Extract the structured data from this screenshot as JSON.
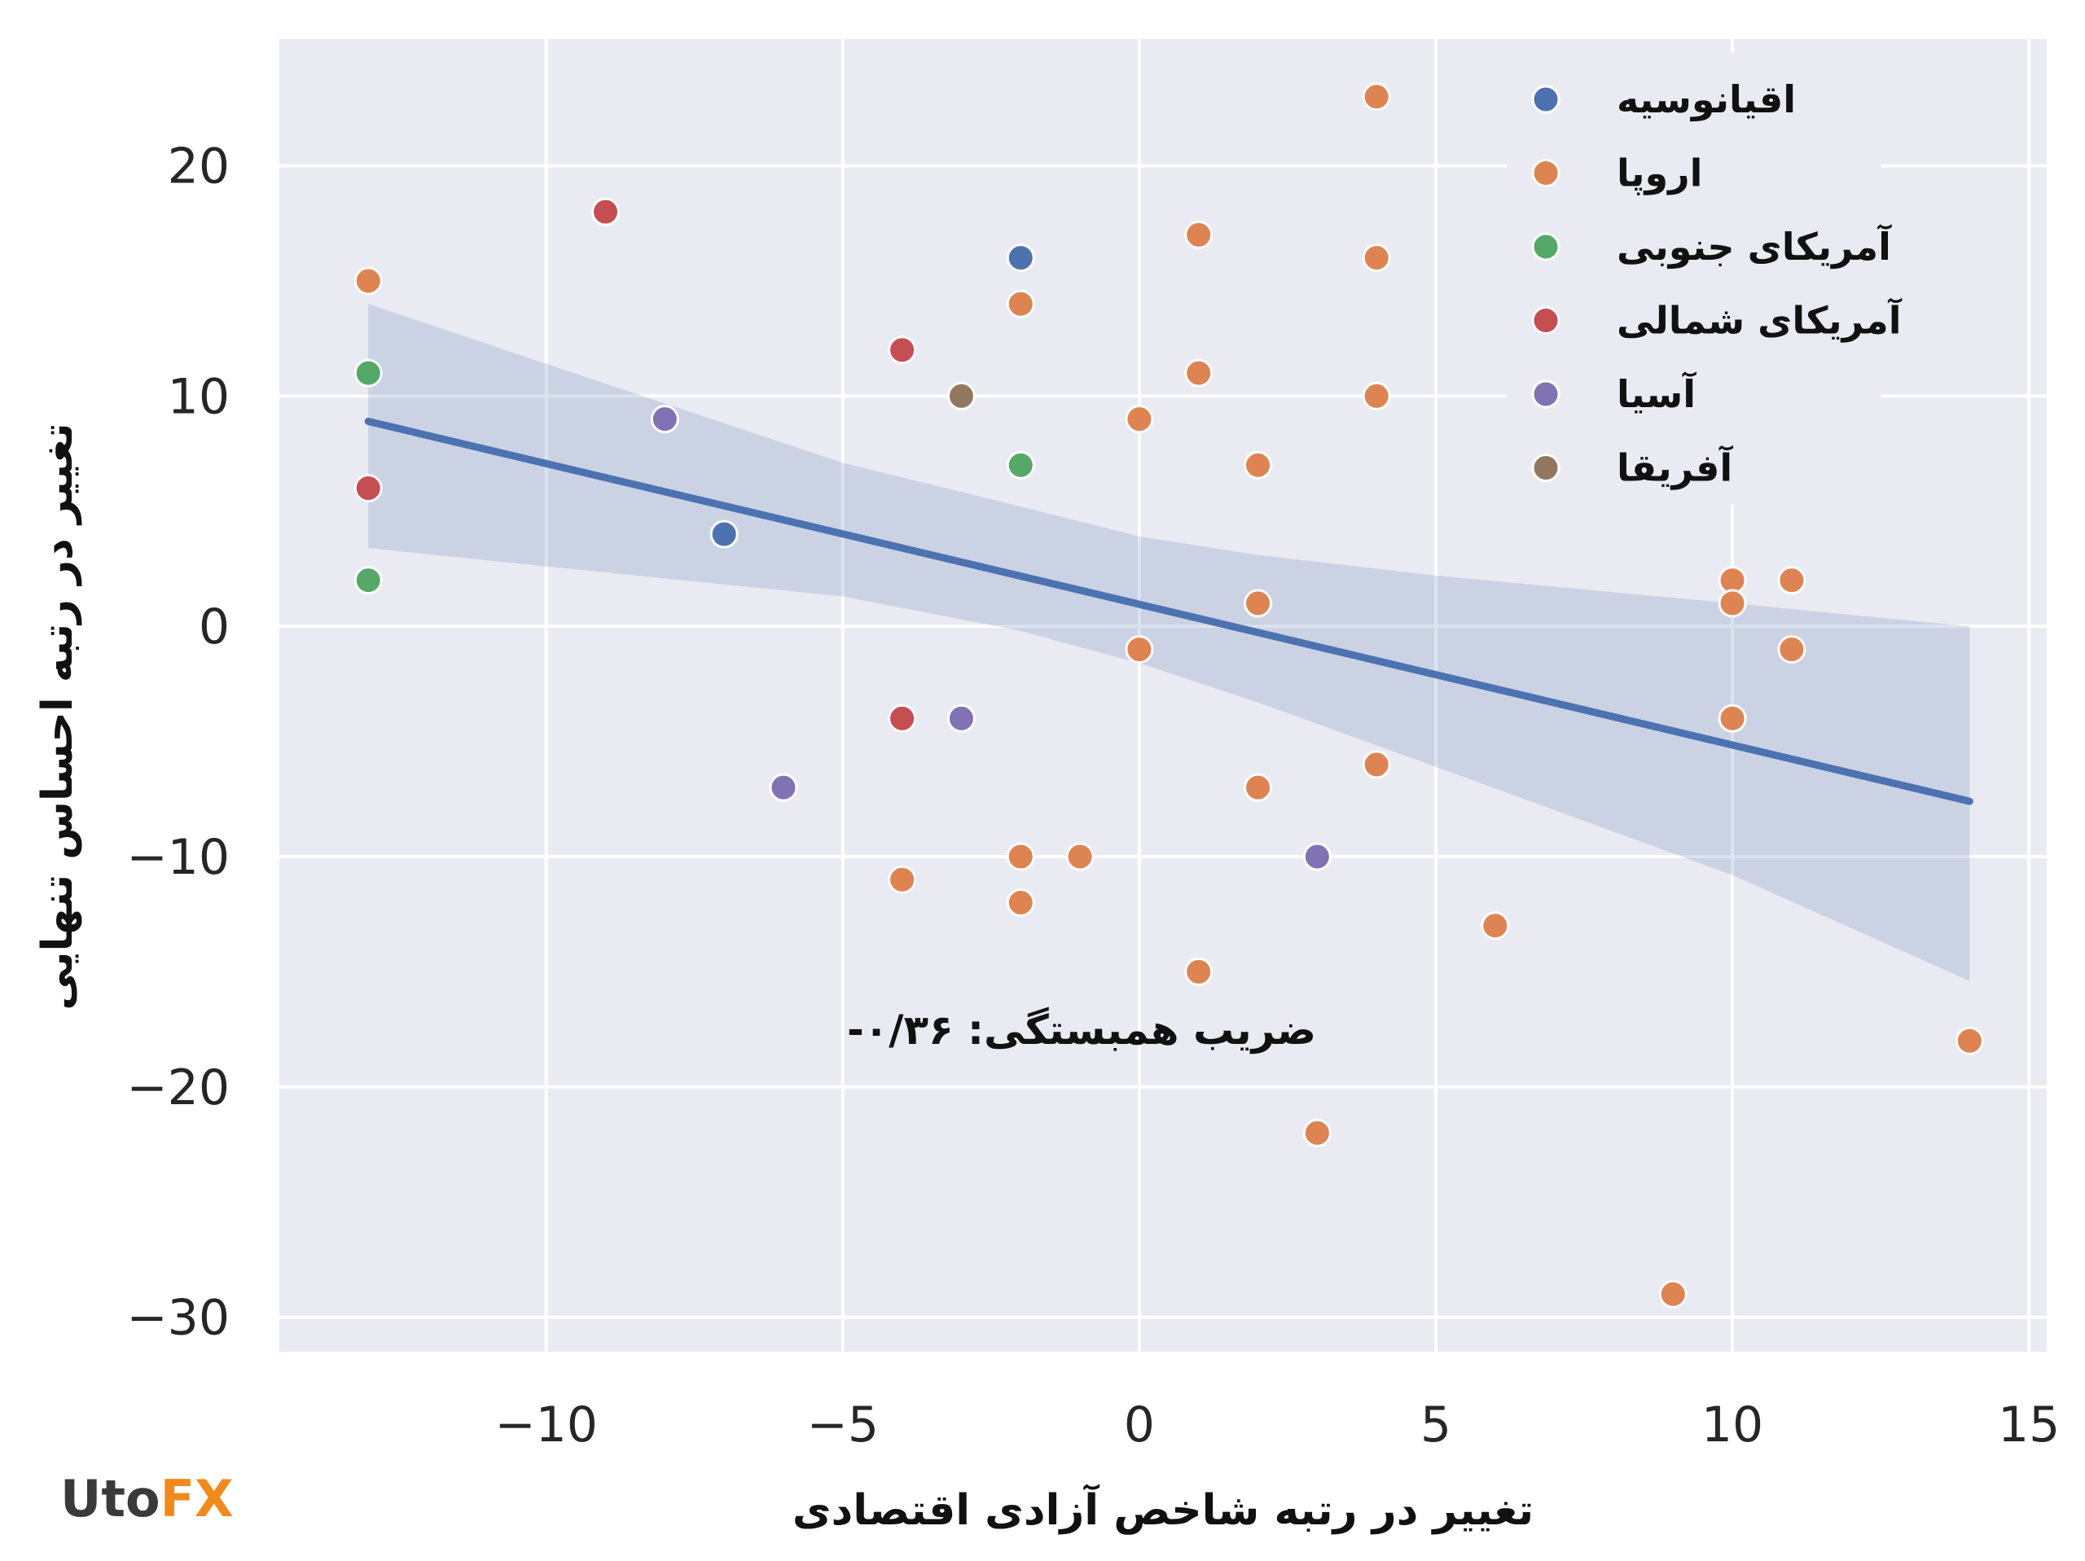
{
  "chart_data": {
    "type": "scatter",
    "xlabel": "تغییر در رتبه شاخص آزادی اقتصادی",
    "ylabel": "تغییر در رتبه احساس تنهایی",
    "xlim": [
      -14.5,
      15.3
    ],
    "ylim": [
      -31.5,
      25.5
    ],
    "x_ticks": [
      -10,
      -5,
      0,
      5,
      10,
      15
    ],
    "y_ticks": [
      -30,
      -20,
      -10,
      0,
      10,
      20
    ],
    "x_tick_labels": [
      "−10",
      "−5",
      "0",
      "5",
      "10",
      "15"
    ],
    "y_tick_labels": [
      "−30",
      "−20",
      "−10",
      "0",
      "10",
      "20"
    ],
    "grid": true,
    "legend_position": "top-right",
    "annotation": "ضریب همبستگی: ۰/۳۶-",
    "series": [
      {
        "name": "اقیانوسیه",
        "color": "#4c72b0",
        "points": [
          [
            -2,
            16
          ],
          [
            -7,
            4
          ]
        ]
      },
      {
        "name": "اروپا",
        "color": "#dd8452",
        "points": [
          [
            4,
            23
          ],
          [
            -13,
            15
          ],
          [
            -2,
            14
          ],
          [
            1,
            17
          ],
          [
            4,
            16
          ],
          [
            1,
            11
          ],
          [
            4,
            10
          ],
          [
            0,
            9
          ],
          [
            2,
            7
          ],
          [
            10,
            2
          ],
          [
            10,
            1
          ],
          [
            11,
            2
          ],
          [
            11,
            -1
          ],
          [
            10,
            -4
          ],
          [
            2,
            1
          ],
          [
            0,
            -1
          ],
          [
            4,
            -6
          ],
          [
            2,
            -7
          ],
          [
            -4,
            -11
          ],
          [
            -2,
            -10
          ],
          [
            -1,
            -10
          ],
          [
            -2,
            -12
          ],
          [
            1,
            -15
          ],
          [
            6,
            -13
          ],
          [
            3,
            -22
          ],
          [
            9,
            -29
          ],
          [
            14,
            -18
          ]
        ]
      },
      {
        "name": "آمریکای جنوبی",
        "color": "#55a868",
        "points": [
          [
            -13,
            11
          ],
          [
            -2,
            7
          ],
          [
            -13,
            2
          ]
        ]
      },
      {
        "name": "آمریکای شمالی",
        "color": "#c44e52",
        "points": [
          [
            -9,
            18
          ],
          [
            -4,
            12
          ],
          [
            -13,
            6
          ],
          [
            -4,
            -4
          ]
        ]
      },
      {
        "name": "آسیا",
        "color": "#8172b3",
        "points": [
          [
            -8,
            9
          ],
          [
            -3,
            -4
          ],
          [
            -6,
            -7
          ],
          [
            3,
            -10
          ]
        ]
      },
      {
        "name": "آفریقا",
        "color": "#937860",
        "points": [
          [
            -3,
            10
          ]
        ]
      }
    ],
    "regression": {
      "color": "#4c72b0",
      "line": [
        [
          -13,
          8.9
        ],
        [
          14,
          -7.6
        ]
      ],
      "ci_upper": [
        [
          -13,
          14.0
        ],
        [
          -10,
          11.4
        ],
        [
          -5,
          7.1
        ],
        [
          -2,
          5.2
        ],
        [
          0,
          3.9
        ],
        [
          2,
          3.1
        ],
        [
          5,
          2.2
        ],
        [
          10,
          1.0
        ],
        [
          14,
          0.0
        ]
      ],
      "ci_lower": [
        [
          -13,
          3.4
        ],
        [
          -10,
          2.6
        ],
        [
          -5,
          1.3
        ],
        [
          -2,
          -0.2
        ],
        [
          0,
          -1.6
        ],
        [
          2,
          -3.3
        ],
        [
          5,
          -6.1
        ],
        [
          10,
          -10.8
        ],
        [
          14,
          -15.4
        ]
      ],
      "ci_color": "#4c72b0"
    },
    "plot_background": "#eaeaf2"
  },
  "logo": {
    "part1": "Uto",
    "part2": "FX"
  }
}
